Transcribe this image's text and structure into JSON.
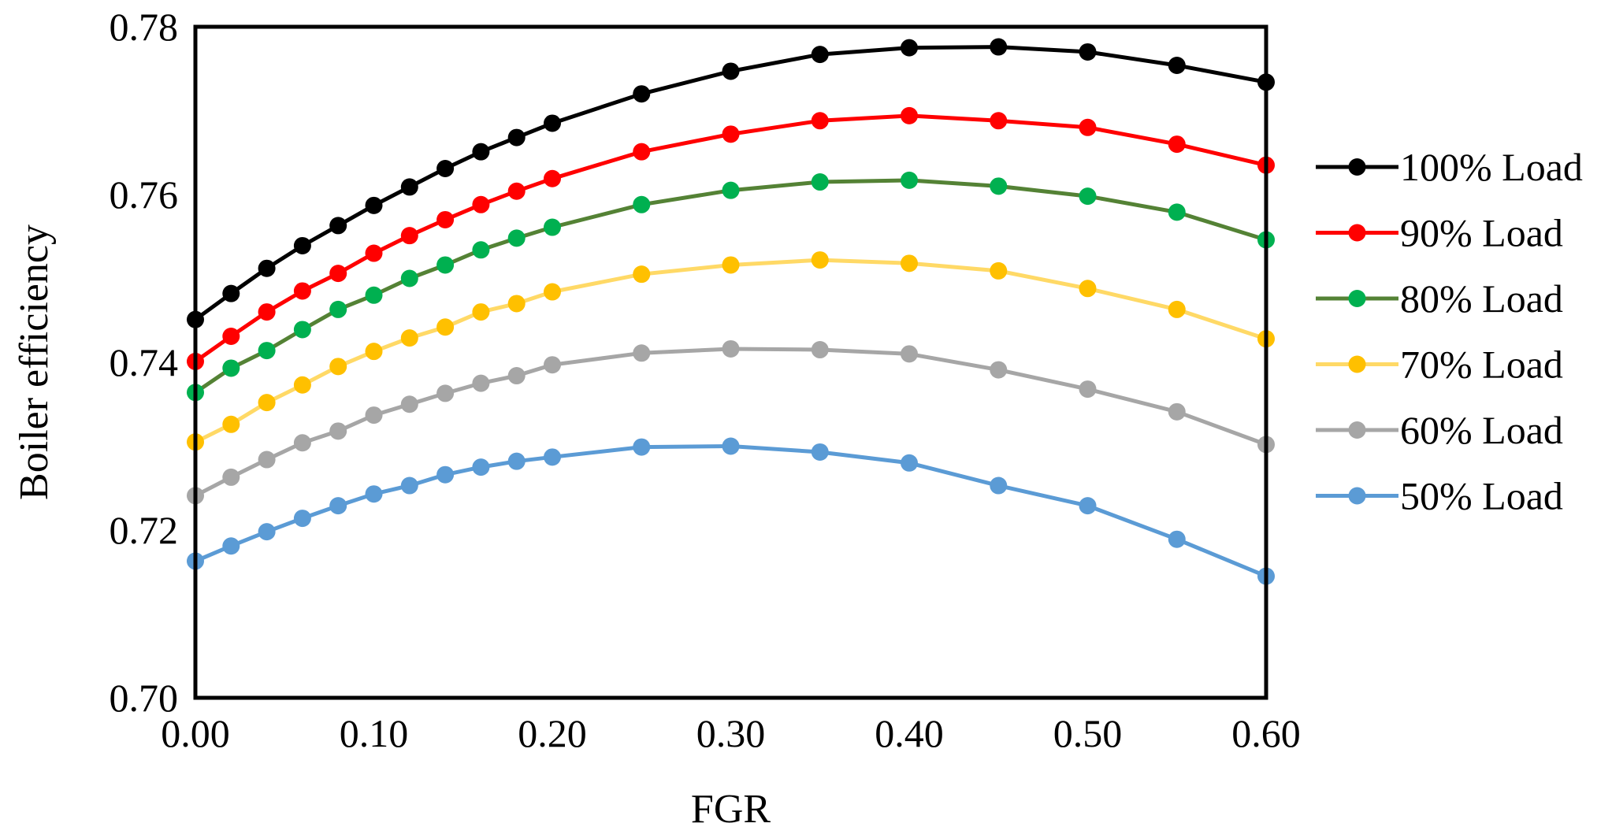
{
  "chart_data": {
    "type": "line",
    "title": "",
    "xlabel": "FGR",
    "ylabel": "Boiler efficiency",
    "xlim": [
      0.0,
      0.6
    ],
    "ylim": [
      0.7,
      0.78
    ],
    "xticks": [
      "0.00",
      "0.10",
      "0.20",
      "0.30",
      "0.40",
      "0.50",
      "0.60"
    ],
    "yticks": [
      "0.70",
      "0.72",
      "0.74",
      "0.76",
      "0.78"
    ],
    "xtick_values": [
      0.0,
      0.1,
      0.2,
      0.3,
      0.4,
      0.5,
      0.6
    ],
    "ytick_values": [
      0.7,
      0.72,
      0.74,
      0.76,
      0.78
    ],
    "grid": false,
    "legend_position": "right",
    "x": [
      0.0,
      0.02,
      0.04,
      0.06,
      0.08,
      0.1,
      0.12,
      0.14,
      0.16,
      0.18,
      0.2,
      0.25,
      0.3,
      0.35,
      0.4,
      0.45,
      0.5,
      0.55,
      0.6
    ],
    "series": [
      {
        "name": "100% Load",
        "color": "#000000",
        "values": [
          0.7451,
          0.7482,
          0.7512,
          0.7539,
          0.7563,
          0.7587,
          0.7609,
          0.7631,
          0.7651,
          0.7668,
          0.7685,
          0.772,
          0.7747,
          0.7767,
          0.7775,
          0.7776,
          0.777,
          0.7754,
          0.7734
        ]
      },
      {
        "name": "90% Load",
        "color": "#ff0000",
        "values": [
          0.7401,
          0.7431,
          0.746,
          0.7485,
          0.7506,
          0.753,
          0.7551,
          0.757,
          0.7588,
          0.7604,
          0.7619,
          0.7651,
          0.7672,
          0.7688,
          0.7694,
          0.7688,
          0.768,
          0.766,
          0.7635
        ]
      },
      {
        "name": "80% Load",
        "color": "#548235",
        "markerColor": "#00b050",
        "values": [
          0.7364,
          0.7393,
          0.7414,
          0.7439,
          0.7463,
          0.748,
          0.75,
          0.7516,
          0.7534,
          0.7548,
          0.7561,
          0.7588,
          0.7605,
          0.7615,
          0.7617,
          0.761,
          0.7598,
          0.7579,
          0.7546
        ]
      },
      {
        "name": "70% Load",
        "color": "#ffd966",
        "markerColor": "#ffc000",
        "values": [
          0.7305,
          0.7326,
          0.7352,
          0.7373,
          0.7395,
          0.7413,
          0.7429,
          0.7442,
          0.746,
          0.747,
          0.7484,
          0.7505,
          0.7516,
          0.7522,
          0.7518,
          0.7509,
          0.7488,
          0.7463,
          0.7428
        ]
      },
      {
        "name": "60% Load",
        "color": "#a6a6a6",
        "values": [
          0.7241,
          0.7263,
          0.7284,
          0.7304,
          0.7318,
          0.7337,
          0.735,
          0.7363,
          0.7375,
          0.7384,
          0.7397,
          0.7411,
          0.7416,
          0.7415,
          0.741,
          0.7391,
          0.7368,
          0.7341,
          0.7302
        ]
      },
      {
        "name": "50% Load",
        "color": "#5b9bd5",
        "values": [
          0.7163,
          0.7181,
          0.7198,
          0.7214,
          0.7229,
          0.7243,
          0.7253,
          0.7266,
          0.7275,
          0.7282,
          0.7287,
          0.7299,
          0.73,
          0.7293,
          0.728,
          0.7253,
          0.7229,
          0.7189,
          0.7145
        ]
      }
    ]
  }
}
